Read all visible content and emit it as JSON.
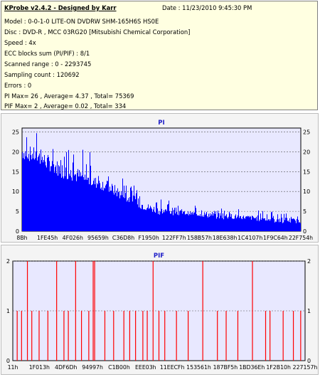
{
  "info": {
    "title": "KProbe v2.4.2 - Designed by Karr",
    "date": "Date : 11/23/2010 9:45:30 PM",
    "lines": [
      "Model : 0-0-1-0 LITE-ON DVDRW SHM-165H6S HS0E",
      "Disc : DVD-R , MCC 03RG20   [Mitsubishi Chemical Corporation]",
      "Speed : 4x",
      "ECC blocks sum (PI/PIF) : 8/1",
      "Scanned range : 0 - 2293745",
      "Sampling count : 120692",
      "Errors : 0",
      "PI Max= 26 , Average= 4.37 , Total= 75369",
      "PIF Max= 2 , Average= 0.02 , Total= 334"
    ]
  },
  "colors": {
    "info_bg": "#ffffe1",
    "plot_bg": "#e8e8ff",
    "pi_bar": "#0000ff",
    "pif_bar": "#ff0000",
    "title": "#1e1ec8"
  },
  "chart_data": [
    {
      "type": "bar",
      "title": "PI",
      "ylim": [
        0,
        26
      ],
      "yticks": [
        0,
        5,
        10,
        15,
        20,
        25
      ],
      "xticks": [
        "8Bh",
        "1FE45h",
        "4F026h",
        "95659h",
        "C36D8h",
        "F1950h",
        "122FF7h",
        "158B57h",
        "18E638h",
        "1C4107h",
        "1F9C64h",
        "22F754h"
      ],
      "grid": true,
      "series_color": "pi_bar",
      "profile": [
        [
          0,
          18,
          22,
          26
        ],
        [
          0.05,
          17,
          21,
          25
        ],
        [
          0.1,
          15,
          19,
          25
        ],
        [
          0.15,
          13,
          17,
          22
        ],
        [
          0.2,
          12,
          16,
          21
        ],
        [
          0.25,
          11,
          14,
          20
        ],
        [
          0.3,
          10,
          13,
          19
        ],
        [
          0.35,
          8,
          11,
          14
        ],
        [
          0.4,
          6,
          9,
          12
        ],
        [
          0.45,
          5,
          7,
          9
        ],
        [
          0.5,
          4,
          6,
          8
        ],
        [
          0.6,
          4,
          5,
          7
        ],
        [
          0.7,
          3,
          5,
          6
        ],
        [
          0.8,
          3,
          4,
          6
        ],
        [
          0.9,
          2,
          4,
          5
        ],
        [
          1.0,
          2,
          3,
          4
        ]
      ]
    },
    {
      "type": "bar",
      "title": "PIF",
      "ylim": [
        0,
        2
      ],
      "yticks": [
        0,
        1,
        2
      ],
      "xticks": [
        "11h",
        "1F013h",
        "4DF6Dh",
        "94997h",
        "C1B00h",
        "EEE03h",
        "11EECFh",
        "153561h",
        "187BF5h",
        "1BD36Eh",
        "1F2B10h",
        "227157h"
      ],
      "grid": true,
      "series_color": "pif_bar",
      "x": [
        0.015,
        0.03,
        0.05,
        0.065,
        0.09,
        0.12,
        0.15,
        0.175,
        0.19,
        0.215,
        0.235,
        0.26,
        0.275,
        0.28,
        0.315,
        0.345,
        0.38,
        0.4,
        0.42,
        0.445,
        0.46,
        0.48,
        0.5,
        0.52,
        0.56,
        0.6,
        0.65,
        0.7,
        0.73,
        0.77,
        0.82,
        0.865,
        0.88,
        0.925,
        0.96,
        0.985
      ],
      "values": [
        1,
        1,
        2,
        1,
        1,
        1,
        2,
        1,
        1,
        2,
        1,
        1,
        2,
        2,
        1,
        1,
        1,
        1,
        1,
        1,
        1,
        2,
        1,
        1,
        1,
        1,
        2,
        1,
        1,
        1,
        2,
        1,
        1,
        1,
        1,
        1
      ]
    }
  ]
}
